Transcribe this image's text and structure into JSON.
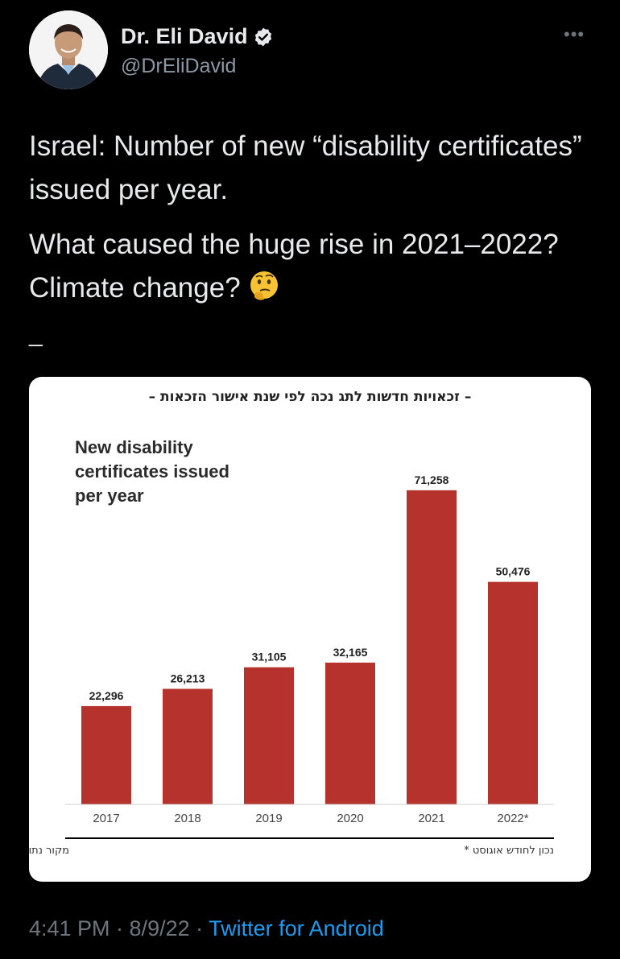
{
  "author": {
    "name": "Dr. Eli David",
    "handle": "@DrEliDavid",
    "verified_icon": "verified-badge-icon",
    "more_label": "•••"
  },
  "tweet": {
    "paragraph1": "Israel: Number of new “disability certificates” issued per year.",
    "paragraph2": "What caused the huge rise in 2021–2022? Climate change?",
    "emoji": "thinking-face-emoji",
    "separator": "_"
  },
  "chart_data": {
    "type": "bar",
    "hebrew_header": "– זכאויות חדשות לתג נכה לפי שנת אישור הזכאות –",
    "title": "New disability certificates issued per year",
    "categories": [
      "2017",
      "2018",
      "2019",
      "2020",
      "2021",
      "2022*"
    ],
    "values": [
      22296,
      26213,
      31105,
      32165,
      71258,
      50476
    ],
    "value_labels": [
      "22,296",
      "26,213",
      "31,105",
      "32,165",
      "71,258",
      "50,476"
    ],
    "ylim": [
      0,
      80000
    ],
    "bar_color": "#b5332c",
    "source_note": "מקור נתונים: משרד התחבורה",
    "footnote": "* נכון לחודש אוגוסט"
  },
  "footer": {
    "time": "4:41 PM · 8/9/22 · ",
    "source": "Twitter for Android"
  },
  "colors": {
    "background": "#000000",
    "text": "#e7e9ea",
    "muted": "#6e767d",
    "link": "#1d9bf0"
  }
}
